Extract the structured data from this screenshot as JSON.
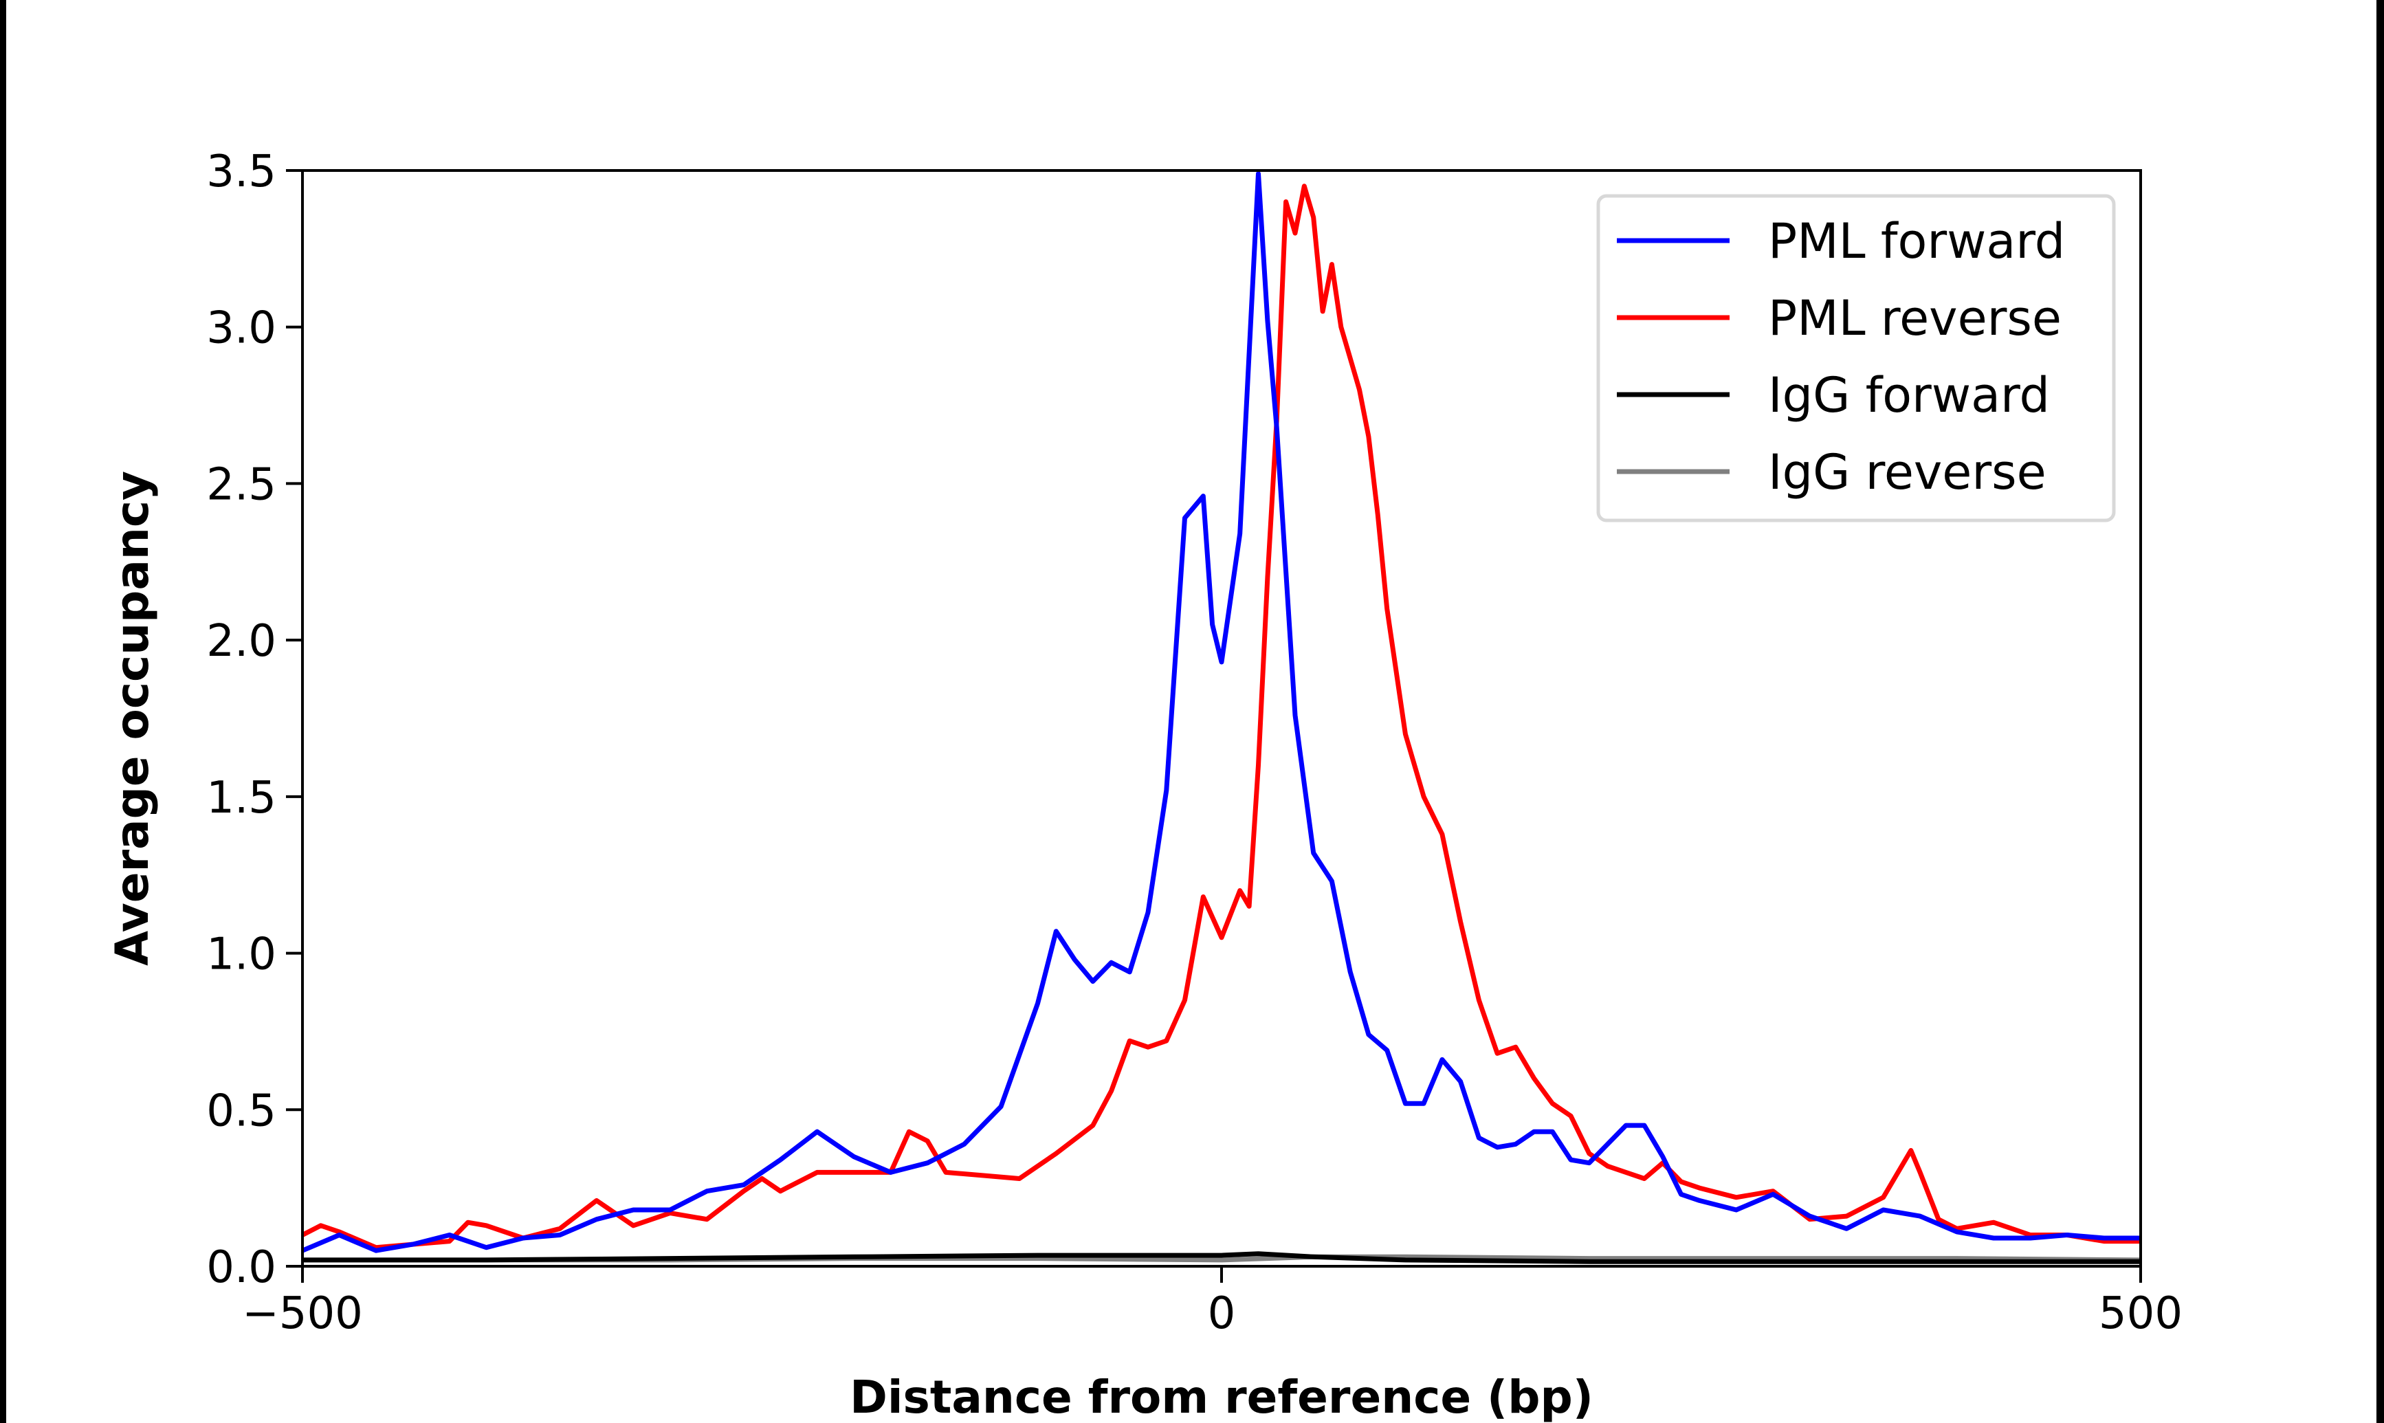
{
  "chart_data": {
    "type": "line",
    "title": "",
    "xlabel": "Distance from reference (bp)",
    "ylabel": "Average occupancy",
    "xlim": [
      -500,
      500
    ],
    "ylim": [
      0,
      3.5
    ],
    "xticks": [
      -500,
      0,
      500
    ],
    "xtick_labels": [
      "−500",
      "0",
      "500"
    ],
    "yticks": [
      0,
      0.5,
      1.0,
      1.5,
      2.0,
      2.5,
      3.0,
      3.5
    ],
    "ytick_labels": [
      "0.0",
      "0.5",
      "1.0",
      "1.5",
      "2.0",
      "2.5",
      "3.0",
      "3.5"
    ],
    "grid": false,
    "legend_position": "top-right",
    "series": [
      {
        "name": "PML forward",
        "color": "#0000ff",
        "x": [
          -500,
          -480,
          -460,
          -440,
          -420,
          -400,
          -380,
          -360,
          -340,
          -320,
          -300,
          -280,
          -260,
          -240,
          -220,
          -200,
          -180,
          -160,
          -140,
          -120,
          -100,
          -90,
          -80,
          -70,
          -60,
          -50,
          -40,
          -30,
          -20,
          -10,
          -5,
          0,
          10,
          20,
          25,
          30,
          40,
          50,
          60,
          70,
          80,
          90,
          100,
          110,
          120,
          130,
          140,
          150,
          160,
          170,
          180,
          190,
          200,
          210,
          220,
          230,
          240,
          250,
          260,
          280,
          300,
          320,
          340,
          360,
          380,
          400,
          420,
          440,
          460,
          480,
          500
        ],
        "y": [
          0.05,
          0.1,
          0.05,
          0.07,
          0.1,
          0.06,
          0.09,
          0.1,
          0.15,
          0.18,
          0.18,
          0.24,
          0.26,
          0.34,
          0.43,
          0.35,
          0.3,
          0.33,
          0.39,
          0.51,
          0.84,
          1.07,
          0.98,
          0.91,
          0.97,
          0.94,
          1.13,
          1.52,
          2.39,
          2.46,
          2.05,
          1.93,
          2.34,
          3.49,
          3.02,
          2.68,
          1.76,
          1.32,
          1.23,
          0.94,
          0.74,
          0.69,
          0.52,
          0.52,
          0.66,
          0.59,
          0.41,
          0.38,
          0.39,
          0.43,
          0.43,
          0.34,
          0.33,
          0.39,
          0.45,
          0.45,
          0.35,
          0.23,
          0.21,
          0.18,
          0.23,
          0.16,
          0.12,
          0.18,
          0.16,
          0.11,
          0.09,
          0.09,
          0.1,
          0.09,
          0.09
        ]
      },
      {
        "name": "PML reverse",
        "color": "#ff0000",
        "x": [
          -500,
          -490,
          -480,
          -460,
          -440,
          -420,
          -410,
          -400,
          -380,
          -360,
          -340,
          -320,
          -300,
          -280,
          -260,
          -250,
          -240,
          -220,
          -200,
          -180,
          -170,
          -160,
          -150,
          -130,
          -110,
          -90,
          -70,
          -60,
          -50,
          -40,
          -30,
          -20,
          -10,
          0,
          10,
          15,
          20,
          25,
          30,
          35,
          40,
          45,
          50,
          55,
          60,
          65,
          70,
          75,
          80,
          85,
          90,
          100,
          110,
          120,
          130,
          140,
          150,
          160,
          170,
          180,
          190,
          200,
          210,
          220,
          230,
          240,
          250,
          260,
          280,
          300,
          320,
          340,
          360,
          375,
          380,
          390,
          400,
          420,
          440,
          460,
          480,
          500
        ],
        "y": [
          0.1,
          0.13,
          0.11,
          0.06,
          0.07,
          0.08,
          0.14,
          0.13,
          0.09,
          0.12,
          0.21,
          0.13,
          0.17,
          0.15,
          0.24,
          0.28,
          0.24,
          0.3,
          0.3,
          0.3,
          0.43,
          0.4,
          0.3,
          0.29,
          0.28,
          0.36,
          0.45,
          0.56,
          0.72,
          0.7,
          0.72,
          0.85,
          1.18,
          1.05,
          1.2,
          1.15,
          1.6,
          2.2,
          2.7,
          3.4,
          3.3,
          3.45,
          3.35,
          3.05,
          3.2,
          3.0,
          2.9,
          2.8,
          2.65,
          2.4,
          2.1,
          1.7,
          1.5,
          1.38,
          1.1,
          0.85,
          0.68,
          0.7,
          0.6,
          0.52,
          0.48,
          0.36,
          0.32,
          0.3,
          0.28,
          0.33,
          0.27,
          0.25,
          0.22,
          0.24,
          0.15,
          0.16,
          0.22,
          0.37,
          0.3,
          0.15,
          0.12,
          0.14,
          0.1,
          0.1,
          0.08,
          0.08
        ]
      },
      {
        "name": "IgG forward",
        "color": "#000000",
        "x": [
          -500,
          -400,
          -300,
          -200,
          -100,
          0,
          20,
          50,
          100,
          200,
          300,
          400,
          500
        ],
        "y": [
          0.02,
          0.02,
          0.025,
          0.03,
          0.035,
          0.035,
          0.04,
          0.03,
          0.02,
          0.015,
          0.015,
          0.015,
          0.015
        ]
      },
      {
        "name": "IgG reverse",
        "color": "#808080",
        "x": [
          -500,
          -400,
          -300,
          -200,
          -100,
          0,
          50,
          100,
          200,
          300,
          400,
          500
        ],
        "y": [
          0.02,
          0.02,
          0.02,
          0.025,
          0.025,
          0.02,
          0.03,
          0.03,
          0.025,
          0.025,
          0.025,
          0.02
        ]
      }
    ]
  }
}
